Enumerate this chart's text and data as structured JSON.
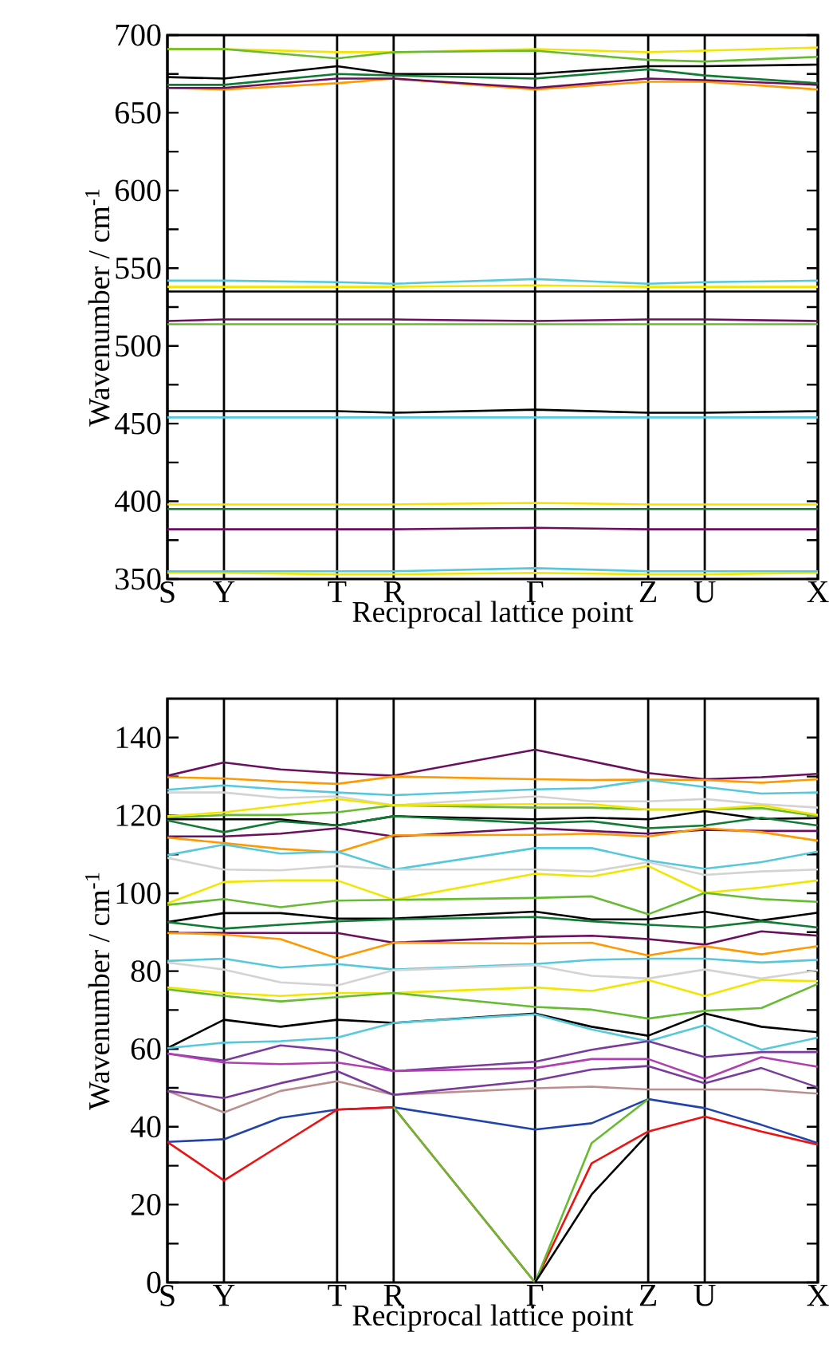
{
  "chart_data": [
    {
      "type": "line",
      "xlabel": "Reciprocal lattice point",
      "ylabel": "Wavenumber / cm$^{-1}$",
      "grid": "x",
      "categories": [
        "S",
        null,
        "Y",
        null,
        null,
        null,
        "T",
        null,
        "R",
        null,
        null,
        null,
        null,
        "Γ",
        null,
        null,
        null,
        "Z",
        null,
        "U",
        null,
        null,
        null,
        "X"
      ],
      "ylim": [
        350,
        700
      ],
      "yticks": [
        350,
        {
          "value": 375,
          "label": null
        },
        400,
        {
          "value": 425,
          "label": null
        },
        450,
        {
          "value": 475,
          "label": null
        },
        500,
        {
          "value": 525,
          "label": null
        },
        550,
        {
          "value": 575,
          "label": null
        },
        600,
        {
          "value": 625,
          "label": null
        },
        650,
        {
          "value": 675,
          "label": null
        },
        700
      ],
      "series": [
        {
          "color": "#f2e600",
          "values": [
            691,
            null,
            691,
            null,
            null,
            null,
            689,
            null,
            689,
            null,
            null,
            null,
            null,
            691,
            null,
            null,
            null,
            689,
            null,
            690,
            null,
            null,
            null,
            692
          ]
        },
        {
          "color": "#66bb33",
          "values": [
            691,
            null,
            691,
            null,
            null,
            null,
            685,
            null,
            689,
            null,
            null,
            null,
            null,
            690,
            null,
            null,
            null,
            684,
            null,
            683,
            null,
            null,
            null,
            686
          ]
        },
        {
          "color": "#000000",
          "values": [
            673,
            null,
            672,
            null,
            null,
            null,
            680,
            null,
            675,
            null,
            null,
            null,
            null,
            675,
            null,
            null,
            null,
            680,
            null,
            680,
            null,
            null,
            null,
            681
          ]
        },
        {
          "color": "#117a33",
          "values": [
            668,
            null,
            668,
            null,
            null,
            null,
            675,
            null,
            674,
            null,
            null,
            null,
            null,
            672,
            null,
            null,
            null,
            678,
            null,
            674,
            null,
            null,
            null,
            669
          ]
        },
        {
          "color": "#ff9900",
          "values": [
            666,
            null,
            665,
            null,
            null,
            null,
            669,
            null,
            672,
            null,
            null,
            null,
            null,
            665,
            null,
            null,
            null,
            670,
            null,
            670,
            null,
            null,
            null,
            665
          ]
        },
        {
          "color": "#6b0f5f",
          "values": [
            666,
            null,
            666,
            null,
            null,
            null,
            672,
            null,
            672,
            null,
            null,
            null,
            null,
            666,
            null,
            null,
            null,
            672,
            null,
            671,
            null,
            null,
            null,
            668
          ]
        },
        {
          "color": "#55c8dc",
          "values": [
            542,
            null,
            542,
            null,
            null,
            null,
            541,
            null,
            540,
            null,
            null,
            null,
            null,
            543,
            null,
            null,
            null,
            540,
            null,
            541,
            null,
            null,
            null,
            542
          ]
        },
        {
          "color": "#f2e600",
          "values": [
            538,
            null,
            538,
            null,
            null,
            null,
            538,
            null,
            538,
            null,
            null,
            null,
            null,
            539,
            null,
            null,
            null,
            538,
            null,
            538,
            null,
            null,
            null,
            538
          ]
        },
        {
          "color": "#000000",
          "values": [
            535,
            null,
            535,
            null,
            null,
            null,
            535,
            null,
            535,
            null,
            null,
            null,
            null,
            535,
            null,
            null,
            null,
            535,
            null,
            535,
            null,
            null,
            null,
            535
          ]
        },
        {
          "color": "#66bb33",
          "values": [
            514,
            null,
            514,
            null,
            null,
            null,
            514,
            null,
            514,
            null,
            null,
            null,
            null,
            514,
            null,
            null,
            null,
            514,
            null,
            514,
            null,
            null,
            null,
            514
          ]
        },
        {
          "color": "#6b0f5f",
          "values": [
            516,
            null,
            517,
            null,
            null,
            null,
            517,
            null,
            517,
            null,
            null,
            null,
            null,
            516,
            null,
            null,
            null,
            517,
            null,
            517,
            null,
            null,
            null,
            516
          ]
        },
        {
          "color": "#55c8dc",
          "values": [
            454,
            null,
            454,
            null,
            null,
            null,
            454,
            null,
            454,
            null,
            null,
            null,
            null,
            454,
            null,
            null,
            null,
            454,
            null,
            454,
            null,
            null,
            null,
            454
          ]
        },
        {
          "color": "#000000",
          "values": [
            458,
            null,
            458,
            null,
            null,
            null,
            458,
            null,
            457,
            null,
            null,
            null,
            null,
            459,
            null,
            null,
            null,
            457,
            null,
            457,
            null,
            null,
            null,
            458
          ]
        },
        {
          "color": "#117a33",
          "values": [
            395,
            null,
            395,
            null,
            null,
            null,
            395,
            null,
            395,
            null,
            null,
            null,
            null,
            395,
            null,
            null,
            null,
            395,
            null,
            395,
            null,
            null,
            null,
            395
          ]
        },
        {
          "color": "#f2e600",
          "values": [
            398,
            null,
            398,
            null,
            null,
            null,
            398,
            null,
            398,
            null,
            null,
            null,
            null,
            399,
            null,
            null,
            null,
            398,
            null,
            398,
            null,
            null,
            null,
            398
          ]
        },
        {
          "color": "#6b0f5f",
          "values": [
            382,
            null,
            382,
            null,
            null,
            null,
            382,
            null,
            382,
            null,
            null,
            null,
            null,
            383,
            null,
            null,
            null,
            382,
            null,
            382,
            null,
            null,
            null,
            382
          ]
        },
        {
          "color": "#f2e600",
          "values": [
            354,
            null,
            354,
            null,
            null,
            null,
            353,
            null,
            353,
            null,
            null,
            null,
            null,
            354,
            null,
            null,
            null,
            353,
            null,
            353,
            null,
            null,
            null,
            354
          ]
        },
        {
          "color": "#55c8dc",
          "values": [
            355,
            null,
            355,
            null,
            null,
            null,
            355,
            null,
            355,
            null,
            null,
            null,
            null,
            357,
            null,
            null,
            null,
            355,
            null,
            355,
            null,
            null,
            null,
            355
          ]
        }
      ]
    },
    {
      "type": "line",
      "xlabel": "Reciprocal lattice point",
      "ylabel": "Wavenumber / cm$^{-1}$",
      "grid": "x",
      "categories": [
        "S",
        null,
        "Y",
        null,
        null,
        null,
        "T",
        null,
        "R",
        null,
        null,
        null,
        null,
        "Γ",
        null,
        null,
        null,
        "Z",
        null,
        "U",
        null,
        null,
        null,
        "X"
      ],
      "ylim": [
        0,
        150
      ],
      "yticks": [
        0,
        {
          "value": 10,
          "label": null
        },
        20,
        {
          "value": 30,
          "label": null
        },
        40,
        {
          "value": 50,
          "label": null
        },
        60,
        {
          "value": 70,
          "label": null
        },
        80,
        {
          "value": 90,
          "label": null
        },
        100,
        {
          "value": 110,
          "label": null
        },
        120,
        {
          "value": 130,
          "label": null
        },
        140
      ],
      "series": [
        {
          "color": "#6b0f5f",
          "values": [
            130.2,
            null,
            133.6,
            null,
            131.8,
            null,
            130.9,
            null,
            130.2,
            null,
            null,
            null,
            null,
            136.9,
            null,
            133.9,
            null,
            130.9,
            null,
            129.3,
            null,
            129.8,
            null,
            130.7
          ]
        },
        {
          "color": "#ff9900",
          "values": [
            129.8,
            null,
            129.5,
            null,
            128.7,
            null,
            128.1,
            null,
            130.0,
            null,
            null,
            null,
            null,
            129.3,
            null,
            129.1,
            null,
            129.2,
            null,
            129.1,
            null,
            128.4,
            null,
            129.3
          ]
        },
        {
          "color": "#55c8dc",
          "values": [
            126.6,
            null,
            127.7,
            null,
            126.7,
            null,
            125.9,
            null,
            125.2,
            null,
            null,
            null,
            null,
            126.7,
            null,
            127.0,
            null,
            129.1,
            null,
            127.3,
            null,
            125.6,
            null,
            125.9
          ]
        },
        {
          "color": "#d3d3d3",
          "values": [
            125.9,
            null,
            125.9,
            null,
            124.5,
            null,
            124.9,
            null,
            122.6,
            null,
            null,
            null,
            null,
            124.9,
            null,
            123.6,
            null,
            123.6,
            null,
            124.2,
            null,
            122.9,
            null,
            122.0
          ]
        },
        {
          "color": "#66bb33",
          "values": [
            119.4,
            null,
            120.1,
            null,
            120.1,
            null,
            120.8,
            null,
            122.6,
            null,
            null,
            null,
            null,
            122.0,
            null,
            122.0,
            null,
            121.5,
            null,
            121.5,
            null,
            121.9,
            null,
            119.8
          ]
        },
        {
          "color": "#f2e600",
          "values": [
            119.8,
            null,
            120.8,
            null,
            122.5,
            null,
            124.2,
            null,
            122.6,
            null,
            null,
            null,
            null,
            122.9,
            null,
            122.9,
            null,
            121.5,
            null,
            121.5,
            null,
            122.6,
            null,
            120.1
          ]
        },
        {
          "color": "#000000",
          "values": [
            119.0,
            null,
            119.0,
            null,
            119.0,
            null,
            117.4,
            null,
            119.8,
            null,
            null,
            null,
            null,
            119.0,
            null,
            119.4,
            null,
            119.0,
            null,
            121.1,
            null,
            119.1,
            null,
            119.3
          ]
        },
        {
          "color": "#117a33",
          "values": [
            118.7,
            null,
            115.7,
            null,
            118.5,
            null,
            117.4,
            null,
            119.8,
            null,
            null,
            null,
            null,
            118.0,
            null,
            118.5,
            null,
            116.7,
            null,
            117.4,
            null,
            119.4,
            null,
            117.4
          ]
        },
        {
          "color": "#6b0f5f",
          "values": [
            114.6,
            null,
            114.6,
            null,
            115.3,
            null,
            116.7,
            null,
            114.6,
            null,
            null,
            null,
            null,
            116.7,
            null,
            116.0,
            null,
            115.3,
            null,
            116.3,
            null,
            116.0,
            null,
            116.0
          ]
        },
        {
          "color": "#ff9900",
          "values": [
            114.3,
            null,
            112.9,
            null,
            111.4,
            null,
            110.5,
            null,
            114.9,
            null,
            null,
            null,
            null,
            115.0,
            null,
            115.3,
            null,
            114.6,
            null,
            116.7,
            null,
            115.7,
            null,
            113.5
          ]
        },
        {
          "color": "#55c8dc",
          "values": [
            109.8,
            null,
            112.5,
            null,
            110.2,
            null,
            110.7,
            null,
            106.1,
            null,
            null,
            null,
            null,
            111.6,
            null,
            111.6,
            null,
            108.4,
            null,
            106.3,
            null,
            108.0,
            null,
            110.7
          ]
        },
        {
          "color": "#d3d3d3",
          "values": [
            109.1,
            null,
            106.1,
            null,
            105.9,
            null,
            107.0,
            null,
            106.1,
            null,
            null,
            null,
            null,
            106.1,
            null,
            105.6,
            null,
            108.0,
            null,
            104.7,
            null,
            105.6,
            null,
            106.1
          ]
        },
        {
          "color": "#f2e600",
          "values": [
            97.4,
            null,
            102.9,
            null,
            103.3,
            null,
            103.3,
            null,
            98.3,
            null,
            null,
            null,
            null,
            105.0,
            null,
            104.3,
            null,
            107.0,
            null,
            100.1,
            null,
            101.5,
            null,
            103.3
          ]
        },
        {
          "color": "#66bb33",
          "values": [
            97.0,
            null,
            98.5,
            null,
            96.4,
            null,
            98.1,
            null,
            98.3,
            null,
            null,
            null,
            null,
            98.8,
            null,
            99.2,
            null,
            94.6,
            null,
            100.1,
            null,
            98.5,
            null,
            97.8
          ]
        },
        {
          "color": "#000000",
          "values": [
            92.6,
            null,
            94.9,
            null,
            94.9,
            null,
            93.5,
            null,
            93.5,
            null,
            null,
            null,
            null,
            95.3,
            null,
            93.3,
            null,
            93.3,
            null,
            95.3,
            null,
            93.0,
            null,
            95.0
          ]
        },
        {
          "color": "#117a33",
          "values": [
            92.6,
            null,
            90.9,
            null,
            91.9,
            null,
            92.8,
            null,
            93.3,
            null,
            null,
            null,
            null,
            93.9,
            null,
            92.8,
            null,
            91.9,
            null,
            91.2,
            null,
            92.8,
            null,
            91.2
          ]
        },
        {
          "color": "#6b0f5f",
          "values": [
            89.8,
            null,
            89.8,
            null,
            89.8,
            null,
            89.8,
            null,
            87.3,
            null,
            null,
            null,
            null,
            88.8,
            null,
            89.1,
            null,
            88.2,
            null,
            86.8,
            null,
            90.2,
            null,
            89.1
          ]
        },
        {
          "color": "#ff9900",
          "values": [
            89.8,
            null,
            89.4,
            null,
            88.2,
            null,
            83.3,
            null,
            87.3,
            null,
            null,
            null,
            null,
            87.1,
            null,
            87.3,
            null,
            84.0,
            null,
            86.4,
            null,
            84.3,
            null,
            86.4
          ]
        },
        {
          "color": "#55c8dc",
          "values": [
            82.6,
            null,
            83.2,
            null,
            80.9,
            null,
            81.8,
            null,
            80.4,
            null,
            null,
            null,
            null,
            81.8,
            null,
            82.9,
            null,
            83.2,
            null,
            83.2,
            null,
            82.2,
            null,
            82.9
          ]
        },
        {
          "color": "#d3d3d3",
          "values": [
            82.2,
            null,
            80.4,
            null,
            77.1,
            null,
            76.3,
            null,
            80.2,
            null,
            null,
            null,
            null,
            81.5,
            null,
            78.8,
            null,
            78.1,
            null,
            80.4,
            null,
            78.1,
            null,
            80.2
          ]
        },
        {
          "color": "#f2e600",
          "values": [
            75.8,
            null,
            74.4,
            null,
            73.6,
            null,
            74.4,
            null,
            74.4,
            null,
            null,
            null,
            null,
            75.8,
            null,
            74.9,
            null,
            77.7,
            null,
            73.6,
            null,
            77.7,
            null,
            77.4
          ]
        },
        {
          "color": "#66bb33",
          "values": [
            75.3,
            null,
            73.6,
            null,
            72.2,
            null,
            73.3,
            null,
            74.4,
            null,
            null,
            null,
            null,
            70.8,
            null,
            70.1,
            null,
            67.8,
            null,
            69.8,
            null,
            70.5,
            null,
            76.7
          ]
        },
        {
          "color": "#000000",
          "values": [
            60.2,
            null,
            67.5,
            null,
            65.7,
            null,
            67.5,
            null,
            66.7,
            null,
            null,
            null,
            null,
            69.1,
            null,
            65.7,
            null,
            63.4,
            null,
            69.1,
            null,
            65.7,
            null,
            64.3
          ]
        },
        {
          "color": "#55c8dc",
          "values": [
            60.2,
            null,
            61.6,
            null,
            62.0,
            null,
            62.9,
            null,
            66.7,
            null,
            null,
            null,
            null,
            68.9,
            null,
            65.0,
            null,
            62.0,
            null,
            66.1,
            null,
            59.8,
            null,
            62.9
          ]
        },
        {
          "color": "#7a3c9c",
          "values": [
            58.8,
            null,
            57.0,
            null,
            60.9,
            null,
            59.5,
            null,
            54.3,
            null,
            null,
            null,
            null,
            56.7,
            null,
            59.8,
            null,
            62.0,
            null,
            57.9,
            null,
            59.2,
            null,
            59.2
          ]
        },
        {
          "color": "#b040b0",
          "values": [
            58.8,
            null,
            56.5,
            null,
            56.1,
            null,
            56.5,
            null,
            54.3,
            null,
            null,
            null,
            null,
            55.1,
            null,
            57.4,
            null,
            57.4,
            null,
            52.3,
            null,
            57.9,
            null,
            55.4
          ]
        },
        {
          "color": "#bc8f8f",
          "values": [
            49.2,
            null,
            43.7,
            null,
            49.2,
            null,
            51.7,
            null,
            48.2,
            null,
            null,
            null,
            null,
            49.9,
            null,
            50.3,
            null,
            49.6,
            null,
            49.6,
            null,
            49.6,
            null,
            48.5
          ]
        },
        {
          "color": "#7a3c9c",
          "values": [
            49.2,
            null,
            47.4,
            null,
            51.2,
            null,
            54.3,
            null,
            48.2,
            null,
            null,
            null,
            null,
            51.9,
            null,
            54.7,
            null,
            55.6,
            null,
            51.2,
            null,
            55.1,
            null,
            50.1
          ]
        },
        {
          "color": "#2244aa",
          "values": [
            36.1,
            null,
            36.8,
            null,
            42.3,
            null,
            44.4,
            null,
            45.0,
            null,
            null,
            null,
            null,
            39.3,
            null,
            40.9,
            null,
            47.1,
            null,
            44.8,
            null,
            40.5,
            null,
            35.8
          ]
        },
        {
          "color": "#ee1111",
          "values": [
            36.1,
            null,
            26.2,
            null,
            35.3,
            null,
            44.4,
            null,
            45.0,
            null,
            null,
            null,
            null,
            0,
            null,
            30.6,
            null,
            38.8,
            null,
            42.6,
            null,
            38.8,
            null,
            35.4
          ]
        },
        {
          "color": "#66bb33",
          "values": [
            null,
            null,
            null,
            null,
            null,
            null,
            null,
            null,
            45.0,
            null,
            null,
            null,
            null,
            0,
            null,
            35.8,
            null,
            47.1,
            null,
            null,
            null,
            null,
            null,
            null
          ]
        },
        {
          "color": "#000000",
          "values": [
            null,
            null,
            null,
            null,
            null,
            null,
            null,
            null,
            null,
            null,
            null,
            null,
            null,
            0,
            null,
            22.6,
            null,
            38.2,
            null,
            null,
            null,
            null,
            null,
            null
          ]
        }
      ]
    }
  ]
}
